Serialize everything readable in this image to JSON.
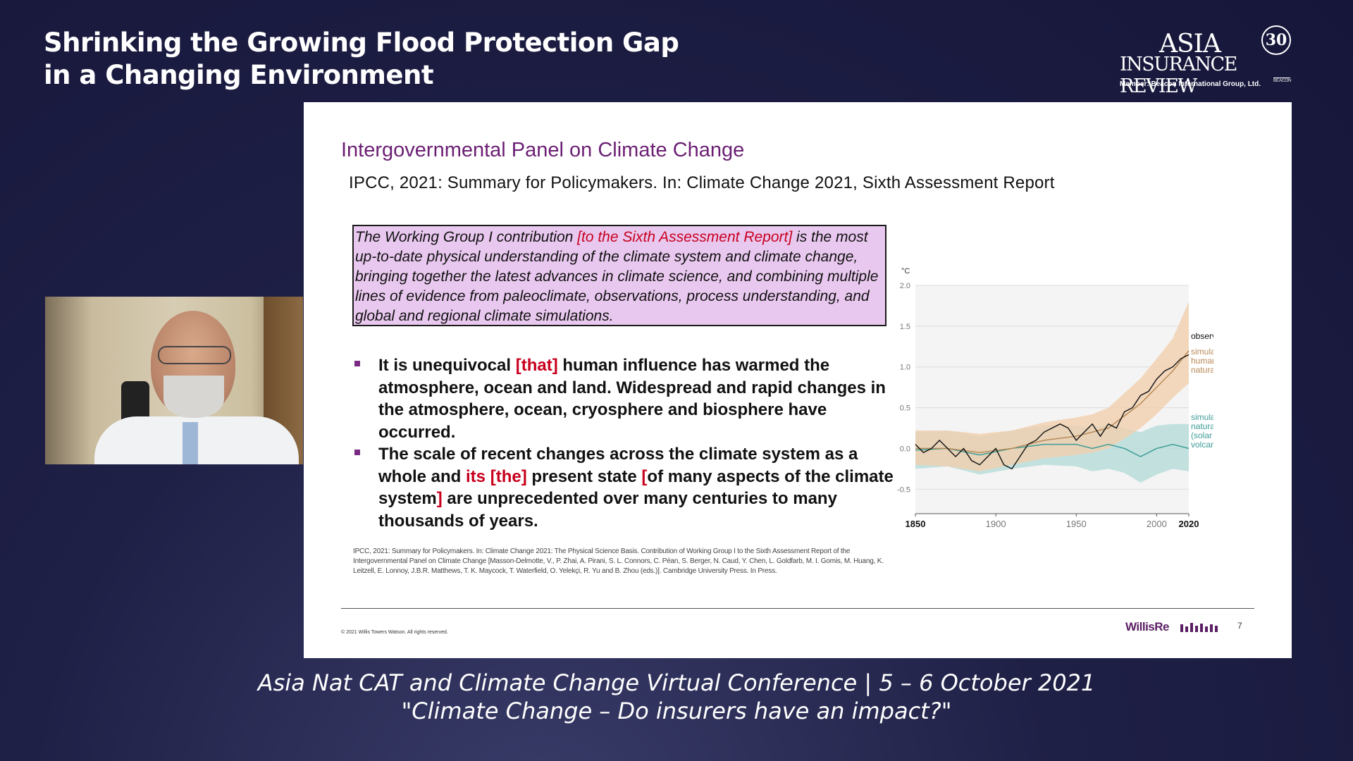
{
  "conference": {
    "title_line1": "Shrinking the Growing Flood Protection Gap",
    "title_line2": "in a Changing Environment",
    "footer_line1": "Asia Nat CAT and Climate Change Virtual Conference  |  5 – 6 October 2021",
    "footer_line2": "\"Climate Change – Do insurers have an impact?\""
  },
  "logo": {
    "asia": "ASIA",
    "review": "INSURANCE REVIEW",
    "anniversary": "30",
    "member": "Member: Beacon International Group, Ltd.",
    "beacon": "BEACON"
  },
  "slide": {
    "heading": "Intergovernmental Panel on Climate Change",
    "subheading": "IPCC, 2021: Summary for Policymakers. In: Climate Change 2021, Sixth Assessment Report",
    "quote": {
      "part1": "The Working Group I contribution ",
      "bracket1": "[to the Sixth Assessment Report]",
      "part2": " is the most up-to-date physical understanding of the climate system and climate change, bringing together the latest advances in climate science, and combining multiple lines of evidence from paleoclimate, observations, process understanding, and global and regional climate simulations."
    },
    "bullet1": {
      "a": "It is unequivocal ",
      "b": "[that]",
      "c": " human influence has warmed the atmosphere, ocean and land. Widespread and rapid changes in the atmosphere, ocean, cryosphere and biosphere have occurred."
    },
    "bullet2": {
      "a": "The scale of recent changes across the climate system as a whole and ",
      "b": "its",
      "c": " ",
      "d": "[the]",
      "e": " present state ",
      "f": "[",
      "g": "of many aspects of the climate system",
      "h": "]",
      "i": " are unprecedented over many centuries to many thousands of years."
    },
    "citation": "IPCC, 2021: Summary for Policymakers. In: Climate Change 2021: The Physical Science Basis. Contribution of Working Group I to the Sixth Assessment Report of the Intergovernmental Panel on Climate Change [Masson-Delmotte, V., P. Zhai, A. Pirani, S. L. Connors, C. Péan, S. Berger, N. Caud, Y. Chen, L. Goldfarb, M. I. Gomis, M. Huang, K. Leitzell, E. Lonnoy, J.B.R. Matthews, T. K. Maycock, T. Waterfield, O. Yelekçi, R. Yu and B. Zhou (eds.)]. Cambridge University Press. In Press.",
    "copyright": "© 2021 Willis Towers Watson. All rights reserved.",
    "brand": "WillisRe",
    "page_number": "7"
  },
  "chart_data": {
    "type": "line",
    "unit_label": "°C",
    "yticks": [
      "2.0",
      "1.5",
      "1.0",
      "0.5",
      "0.0",
      "-0.5"
    ],
    "xticks": [
      "1850",
      "1900",
      "1950",
      "2000",
      "2020"
    ],
    "xlim": [
      1850,
      2020
    ],
    "ylim": [
      -0.8,
      2.0
    ],
    "grid": true,
    "series": [
      {
        "name": "observed",
        "color": "#111111",
        "x": [
          1850,
          1855,
          1860,
          1865,
          1870,
          1875,
          1880,
          1885,
          1890,
          1895,
          1900,
          1905,
          1910,
          1915,
          1920,
          1925,
          1930,
          1935,
          1940,
          1945,
          1950,
          1955,
          1960,
          1965,
          1970,
          1975,
          1980,
          1985,
          1990,
          1995,
          2000,
          2005,
          2010,
          2015,
          2020
        ],
        "y": [
          0.05,
          -0.05,
          0.0,
          0.1,
          0.0,
          -0.1,
          0.0,
          -0.15,
          -0.2,
          -0.1,
          0.0,
          -0.2,
          -0.25,
          -0.1,
          0.05,
          0.1,
          0.2,
          0.25,
          0.3,
          0.25,
          0.1,
          0.2,
          0.3,
          0.15,
          0.3,
          0.25,
          0.45,
          0.5,
          0.65,
          0.7,
          0.85,
          0.95,
          1.0,
          1.1,
          1.15
        ]
      },
      {
        "name": "simulated human & natural",
        "color": "#b88a58",
        "band_color": "#f1cfae",
        "x": [
          1850,
          1870,
          1890,
          1910,
          1930,
          1950,
          1960,
          1970,
          1980,
          1990,
          2000,
          2010,
          2020
        ],
        "y": [
          0.0,
          0.0,
          -0.05,
          0.0,
          0.1,
          0.15,
          0.2,
          0.25,
          0.4,
          0.55,
          0.75,
          0.95,
          1.2
        ],
        "lower": [
          -0.2,
          -0.22,
          -0.28,
          -0.2,
          -0.12,
          -0.08,
          -0.05,
          0.0,
          0.12,
          0.25,
          0.42,
          0.62,
          0.8
        ],
        "upper": [
          0.22,
          0.22,
          0.18,
          0.22,
          0.32,
          0.38,
          0.42,
          0.5,
          0.68,
          0.86,
          1.1,
          1.35,
          1.8
        ]
      },
      {
        "name": "simulated natural only (solar & volcanic)",
        "color": "#3c9c98",
        "band_color": "#b5dcd8",
        "x": [
          1850,
          1870,
          1890,
          1910,
          1930,
          1950,
          1960,
          1970,
          1980,
          1990,
          2000,
          2010,
          2020
        ],
        "y": [
          -0.02,
          0.0,
          -0.08,
          0.0,
          0.05,
          0.05,
          0.0,
          0.05,
          0.0,
          -0.1,
          0.0,
          0.05,
          0.0
        ],
        "lower": [
          -0.25,
          -0.22,
          -0.32,
          -0.25,
          -0.2,
          -0.22,
          -0.28,
          -0.25,
          -0.3,
          -0.42,
          -0.32,
          -0.25,
          -0.28
        ],
        "upper": [
          0.2,
          0.22,
          0.15,
          0.22,
          0.28,
          0.28,
          0.25,
          0.3,
          0.25,
          0.2,
          0.28,
          0.3,
          0.3
        ]
      }
    ],
    "legend": {
      "observed": "observed",
      "human_line1": "simulated",
      "human_line2": "human &",
      "human_line3": "natural",
      "natural_line1": "simulated",
      "natural_line2": "natural only",
      "natural_line3": "(solar &",
      "natural_line4": "volcanic)"
    }
  }
}
